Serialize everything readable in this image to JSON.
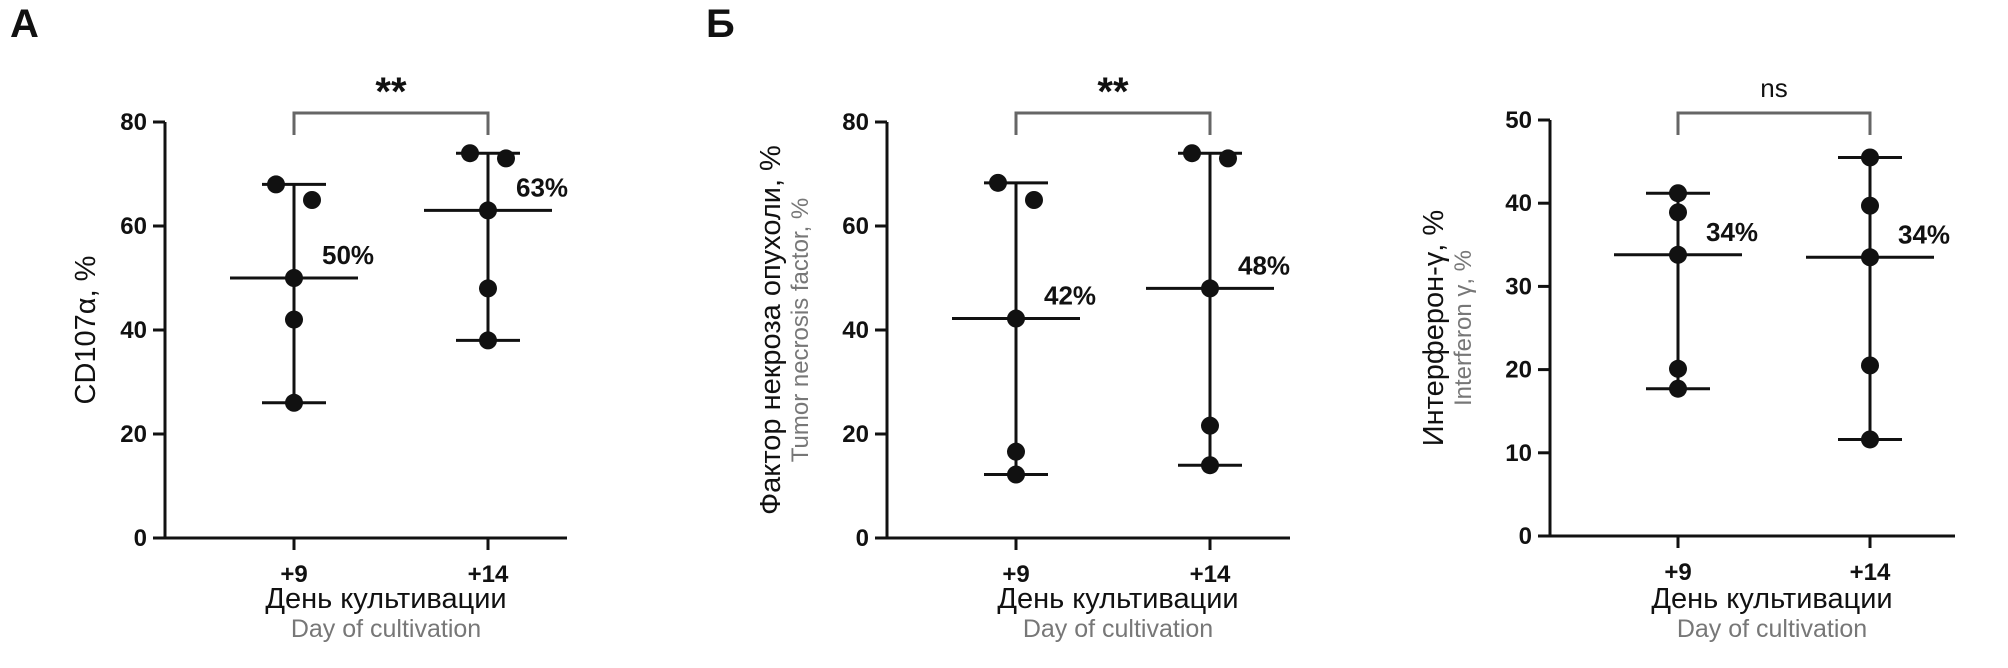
{
  "panels": [
    {
      "letter": "А"
    },
    {
      "letter": "Б"
    }
  ],
  "style": {
    "mark_color": "#111111",
    "bracket_color": "#666666",
    "secondary_text_color": "#777777"
  },
  "chart_data": [
    {
      "type": "scatter",
      "panel": "А",
      "title": "",
      "xlabel": "День культивации",
      "xlabel_secondary": "Day of cultivation",
      "ylabel": "CD107α, %",
      "ylabel_secondary": "",
      "categories": [
        "+9",
        "+14"
      ],
      "ylim": [
        0,
        80
      ],
      "yticks": [
        "0",
        "20",
        "40",
        "60",
        "80"
      ],
      "grid": false,
      "groups": [
        {
          "category": "+9",
          "points": [
            68,
            65,
            50,
            42,
            26
          ],
          "median": 50,
          "min": 26,
          "max": 68,
          "median_label": "50%"
        },
        {
          "category": "+14",
          "points": [
            74,
            73,
            63,
            48,
            38
          ],
          "median": 63,
          "min": 38,
          "max": 74,
          "median_label": "63%"
        }
      ],
      "significance": "**"
    },
    {
      "type": "scatter",
      "panel": "Б",
      "title": "",
      "xlabel": "День культивации",
      "xlabel_secondary": "Day of cultivation",
      "ylabel": "Фактор некроза опухоли, %",
      "ylabel_secondary": "Tumor necrosis factor, %",
      "categories": [
        "+9",
        "+14"
      ],
      "ylim": [
        0,
        80
      ],
      "yticks": [
        "0",
        "20",
        "40",
        "60",
        "80"
      ],
      "grid": false,
      "groups": [
        {
          "category": "+9",
          "points": [
            68.3,
            65,
            42.2,
            16.6,
            12.2
          ],
          "median": 42.2,
          "min": 12.2,
          "max": 68.3,
          "median_label": "42%"
        },
        {
          "category": "+14",
          "points": [
            74,
            73,
            48,
            21.6,
            14
          ],
          "median": 48,
          "min": 14,
          "max": 74,
          "median_label": "48%"
        }
      ],
      "significance": "**"
    },
    {
      "type": "scatter",
      "panel": "",
      "title": "",
      "xlabel": "День культивации",
      "xlabel_secondary": "Day of cultivation",
      "ylabel": "Интерферон-γ, %",
      "ylabel_secondary": "Interferon γ, %",
      "categories": [
        "+9",
        "+14"
      ],
      "ylim": [
        0,
        50
      ],
      "yticks": [
        "0",
        "10",
        "20",
        "30",
        "40",
        "50"
      ],
      "grid": false,
      "groups": [
        {
          "category": "+9",
          "points": [
            41.2,
            38.9,
            33.8,
            20.1,
            17.7
          ],
          "median": 33.8,
          "min": 17.7,
          "max": 41.2,
          "median_label": "34%"
        },
        {
          "category": "+14",
          "points": [
            45.5,
            39.7,
            33.5,
            20.5,
            11.6
          ],
          "median": 33.5,
          "min": 11.6,
          "max": 45.5,
          "median_label": "34%"
        }
      ],
      "significance": "ns"
    }
  ]
}
